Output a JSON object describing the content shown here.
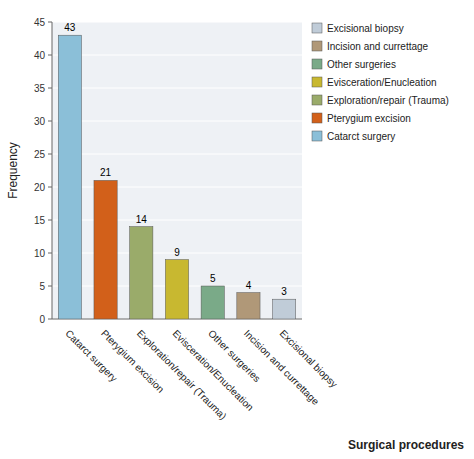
{
  "chart_data": {
    "type": "bar",
    "categories": [
      "Catarct surgery",
      "Pterygium excision",
      "Exploration/repair (Trauma)",
      "Evisceration/Enucleation",
      "Other surgeries",
      "Incision and currettage",
      "Excisional biopsy"
    ],
    "values": [
      43,
      21,
      14,
      9,
      5,
      4,
      3
    ],
    "colors": [
      "#8bbfd8",
      "#d2601a",
      "#9aab6a",
      "#c8b830",
      "#7aaa88",
      "#b09878",
      "#c0ccd8"
    ],
    "x_label": "Surgical procedures",
    "y_label": "Frequency",
    "ylim": [
      0,
      45
    ],
    "yticks": [
      0,
      5,
      10,
      15,
      20,
      25,
      30,
      35,
      40,
      45
    ],
    "grid": true,
    "data_labels": true,
    "legend": "right"
  }
}
